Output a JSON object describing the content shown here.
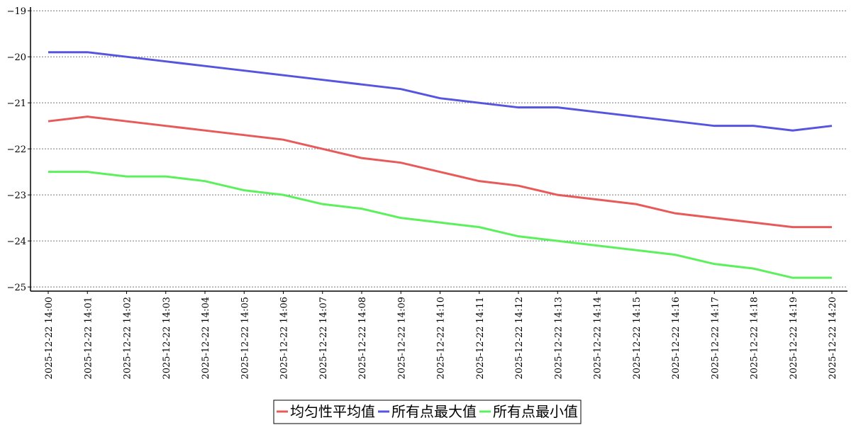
{
  "chart_data": {
    "type": "line",
    "categories": [
      "2025-12-22 14:00",
      "2025-12-22 14:01",
      "2025-12-22 14:02",
      "2025-12-22 14:03",
      "2025-12-22 14:04",
      "2025-12-22 14:05",
      "2025-12-22 14:06",
      "2025-12-22 14:07",
      "2025-12-22 14:08",
      "2025-12-22 14:09",
      "2025-12-22 14:10",
      "2025-12-22 14:11",
      "2025-12-22 14:12",
      "2025-12-22 14:13",
      "2025-12-22 14:14",
      "2025-12-22 14:15",
      "2025-12-22 14:16",
      "2025-12-22 14:17",
      "2025-12-22 14:18",
      "2025-12-22 14:19",
      "2025-12-22 14:20"
    ],
    "series": [
      {
        "name": "均匀性平均值",
        "color": "#e85a5a",
        "values": [
          -21.4,
          -21.3,
          -21.4,
          -21.5,
          -21.6,
          -21.7,
          -21.8,
          -22.0,
          -22.2,
          -22.3,
          -22.5,
          -22.7,
          -22.8,
          -23.0,
          -23.1,
          -23.2,
          -23.4,
          -23.5,
          -23.6,
          -23.7,
          -23.7
        ]
      },
      {
        "name": "所有点最大值",
        "color": "#5555e0",
        "values": [
          -19.9,
          -19.9,
          -20.0,
          -20.1,
          -20.2,
          -20.3,
          -20.4,
          -20.5,
          -20.6,
          -20.7,
          -20.9,
          -21.0,
          -21.1,
          -21.1,
          -21.2,
          -21.3,
          -21.4,
          -21.5,
          -21.5,
          -21.6,
          -21.5
        ]
      },
      {
        "name": "所有点最小值",
        "color": "#5cf05c",
        "values": [
          -22.5,
          -22.5,
          -22.6,
          -22.6,
          -22.7,
          -22.9,
          -23.0,
          -23.2,
          -23.3,
          -23.5,
          -23.6,
          -23.7,
          -23.9,
          -24.0,
          -24.1,
          -24.2,
          -24.3,
          -24.5,
          -24.6,
          -24.8,
          -24.8
        ]
      }
    ],
    "ylim": [
      -25.09,
      -18.92
    ],
    "yticks": [
      {
        "value": -19,
        "label": "−19"
      },
      {
        "value": -20,
        "label": "−20"
      },
      {
        "value": -21,
        "label": "−21"
      },
      {
        "value": -22,
        "label": "−22"
      },
      {
        "value": -23,
        "label": "−23"
      },
      {
        "value": -24,
        "label": "−24"
      },
      {
        "value": -25,
        "label": "−25"
      }
    ],
    "grid": true,
    "legend": "bottom"
  }
}
